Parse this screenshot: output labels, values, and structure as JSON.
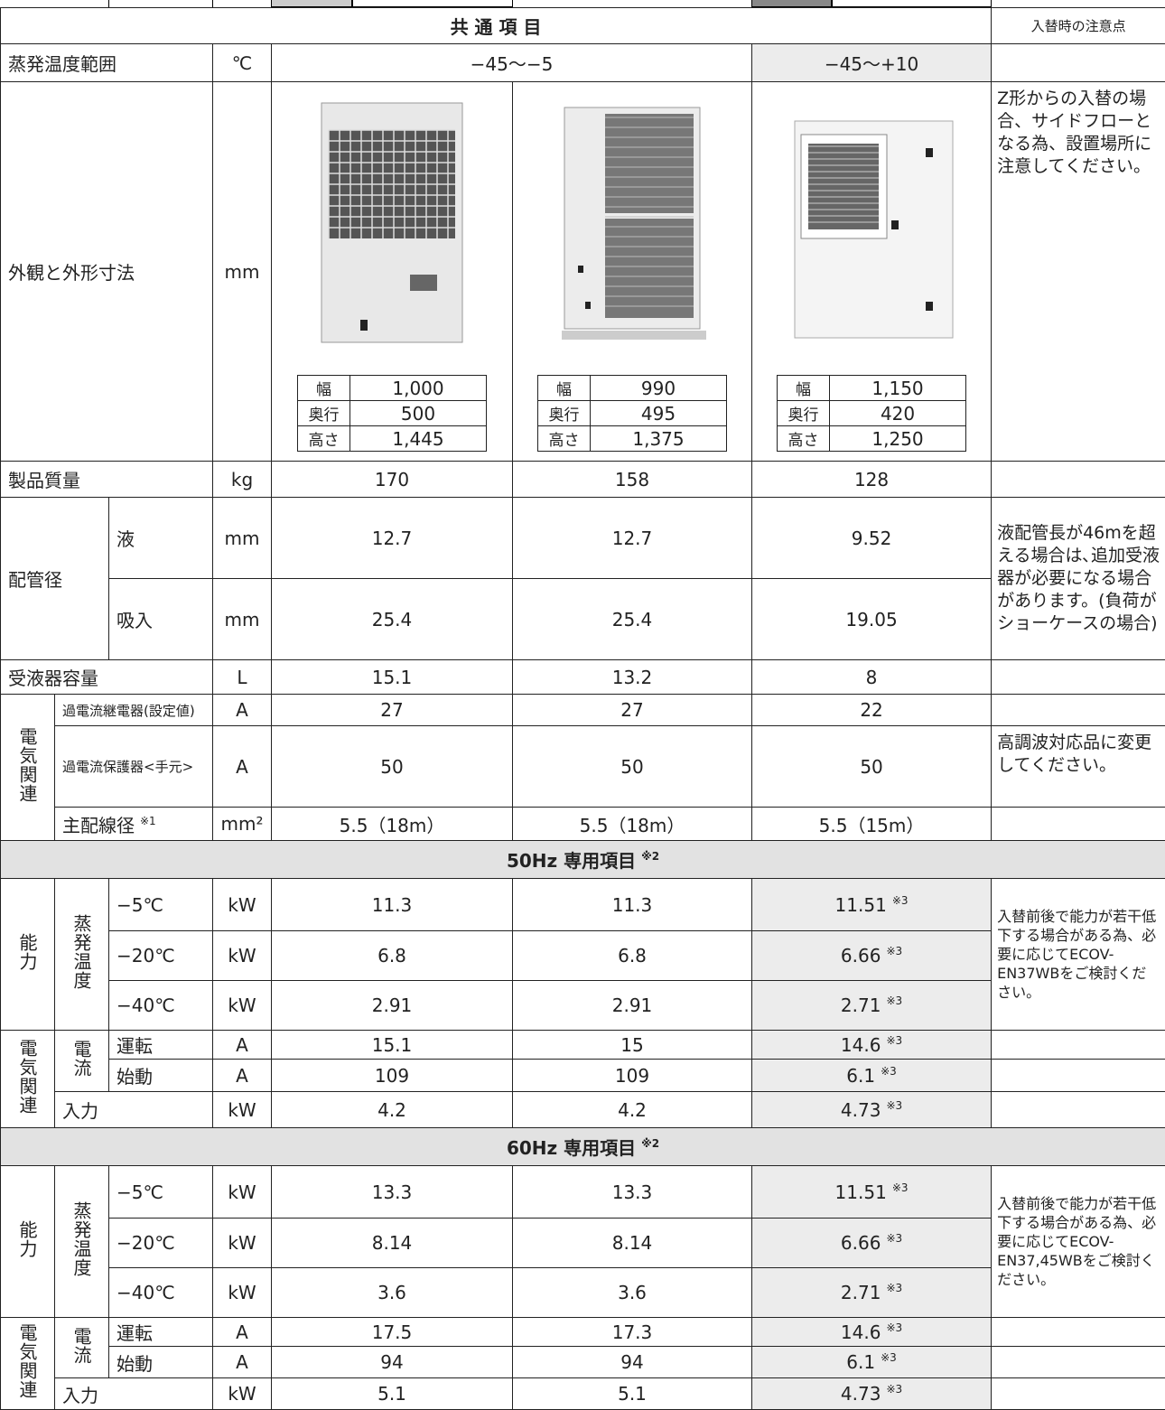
{
  "common": {
    "title": "共 通 項 目",
    "note_header": "入替時の注意点",
    "evap_range": {
      "label": "蒸発温度範囲",
      "unit": "℃",
      "values": [
        "−45〜−5",
        "−45〜+10"
      ]
    },
    "appearance": {
      "label": "外観と外形寸法",
      "unit": "mm",
      "units": [
        [
          [
            "幅",
            "1,000"
          ],
          [
            "奥行",
            "500"
          ],
          [
            "高さ",
            "1,445"
          ]
        ],
        [
          [
            "幅",
            "990"
          ],
          [
            "奥行",
            "495"
          ],
          [
            "高さ",
            "1,375"
          ]
        ],
        [
          [
            "幅",
            "1,150"
          ],
          [
            "奥行",
            "420"
          ],
          [
            "高さ",
            "1,250"
          ]
        ]
      ],
      "note": "Z形からの入替の場合、サイドフローとなる為、設置場所に注意してください。"
    },
    "weight": {
      "label": "製品質量",
      "unit": "kg",
      "values": [
        "170",
        "158",
        "128"
      ]
    },
    "pipe": {
      "label": "配管径",
      "note": "液配管長が46mを超える場合は､追加受液器が必要になる場合があります。(負荷がショーケースの場合)",
      "rows": [
        {
          "label": "液",
          "unit": "mm",
          "values": [
            "12.7",
            "12.7",
            "9.52"
          ]
        },
        {
          "label": "吸入",
          "unit": "mm",
          "values": [
            "25.4",
            "25.4",
            "19.05"
          ]
        }
      ]
    },
    "receiver": {
      "label": "受液器容量",
      "unit": "L",
      "values": [
        "15.1",
        "13.2",
        "8"
      ]
    },
    "electric": {
      "label": "電気関連",
      "rows": [
        {
          "label": "過電流継電器(設定値)",
          "unit": "A",
          "values": [
            "27",
            "27",
            "22"
          ]
        },
        {
          "label": "過電流保護器<手元>",
          "unit": "A",
          "values": [
            "50",
            "50",
            "50"
          ],
          "note": "高調波対応品に変更してください。"
        },
        {
          "label": "主配線径",
          "mark": "※1",
          "unit": "mm²",
          "values": [
            "5.5（18m）",
            "5.5（18m）",
            "5.5（15m）"
          ]
        }
      ]
    }
  },
  "sections": [
    {
      "title": "50Hz 専用項目",
      "mark": "※2",
      "mark3": "※3",
      "capacity_label": "能力",
      "evap_label": "蒸発温度",
      "capacity": [
        {
          "label": "−5℃",
          "unit": "kW",
          "values": [
            "11.3",
            "11.3",
            "11.51"
          ]
        },
        {
          "label": "−20℃",
          "unit": "kW",
          "values": [
            "6.8",
            "6.8",
            "6.66"
          ]
        },
        {
          "label": "−40℃",
          "unit": "kW",
          "values": [
            "2.91",
            "2.91",
            "2.71"
          ]
        }
      ],
      "capacity_note": "入替前後で能力が若干低下する場合がある為、必要に応じてECOV-EN37WBをご検討ください。",
      "electric_label": "電気関連",
      "current_label": "電流",
      "current": [
        {
          "label": "運転",
          "unit": "A",
          "values": [
            "15.1",
            "15",
            "14.6"
          ]
        },
        {
          "label": "始動",
          "unit": "A",
          "values": [
            "109",
            "109",
            "6.1"
          ]
        }
      ],
      "input": {
        "label": "入力",
        "unit": "kW",
        "values": [
          "4.2",
          "4.2",
          "4.73"
        ]
      }
    },
    {
      "title": "60Hz 専用項目",
      "mark": "※2",
      "mark3": "※3",
      "capacity_label": "能力",
      "evap_label": "蒸発温度",
      "capacity": [
        {
          "label": "−5℃",
          "unit": "kW",
          "values": [
            "13.3",
            "13.3",
            "11.51"
          ]
        },
        {
          "label": "−20℃",
          "unit": "kW",
          "values": [
            "8.14",
            "8.14",
            "6.66"
          ]
        },
        {
          "label": "−40℃",
          "unit": "kW",
          "values": [
            "3.6",
            "3.6",
            "2.71"
          ]
        }
      ],
      "capacity_note": "入替前後で能力が若干低下する場合がある為、必要に応じてECOV-EN37,45WBをご検討ください。",
      "electric_label": "電気関連",
      "current_label": "電流",
      "current": [
        {
          "label": "運転",
          "unit": "A",
          "values": [
            "17.5",
            "17.3",
            "14.6"
          ]
        },
        {
          "label": "始動",
          "unit": "A",
          "values": [
            "94",
            "94",
            "6.1"
          ]
        }
      ],
      "input": {
        "label": "入力",
        "unit": "kW",
        "values": [
          "5.1",
          "5.1",
          "4.73"
        ]
      }
    }
  ]
}
